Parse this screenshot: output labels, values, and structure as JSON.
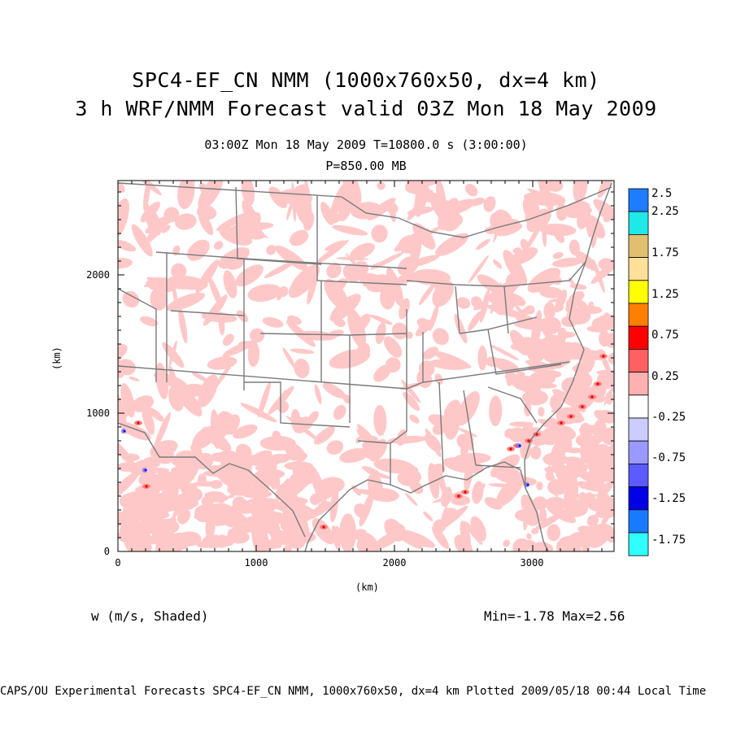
{
  "title_line1": "SPC4-EF_CN NMM (1000x760x50, dx=4 km)",
  "title_line2": "3 h WRF/NMM Forecast valid 03Z Mon 18 May 2009",
  "time_line": "03:00Z Mon 18 May 2009     T=10800.0 s (3:00:00)",
  "pressure_line": "P=850.00 MB",
  "x_axis": {
    "label": "(km)",
    "ticks": [
      "0",
      "1000",
      "2000",
      "3000"
    ]
  },
  "y_axis": {
    "label": "(km)",
    "ticks": [
      "0",
      "1000",
      "2000"
    ]
  },
  "variable_label": "w (m/s, Shaded)",
  "minmax_label": "Min=-1.78 Max=2.56",
  "footer": "CAPS/OU Experimental Forecasts  SPC4-EF_CN NMM, 1000x760x50, dx=4 km  Plotted 2009/05/18 00:44 Local Time",
  "colorbar": {
    "labels": [
      "2.5",
      "2.25",
      "1.75",
      "1.25",
      "0.75",
      "0.25",
      "-0.25",
      "-0.75",
      "-1.25",
      "-1.75"
    ],
    "colors": [
      "#1e7cff",
      "#20e8e8",
      "#e0c070",
      "#ffe098",
      "#ffff00",
      "#ff8000",
      "#ff0000",
      "#ff6060",
      "#ffb0b0",
      "#ffffff",
      "#ccccff",
      "#9999ff",
      "#5b5bff",
      "#0000e6",
      "#1a7aff",
      "#30ffff"
    ]
  },
  "shading_colors": {
    "weak_positive": "#ffc8c8",
    "moderate_positive": "#ff8080",
    "strong_positive": "#e00000",
    "negative": "#8080ff",
    "strong_negative": "#0000dd",
    "boundaries": "#808080"
  }
}
